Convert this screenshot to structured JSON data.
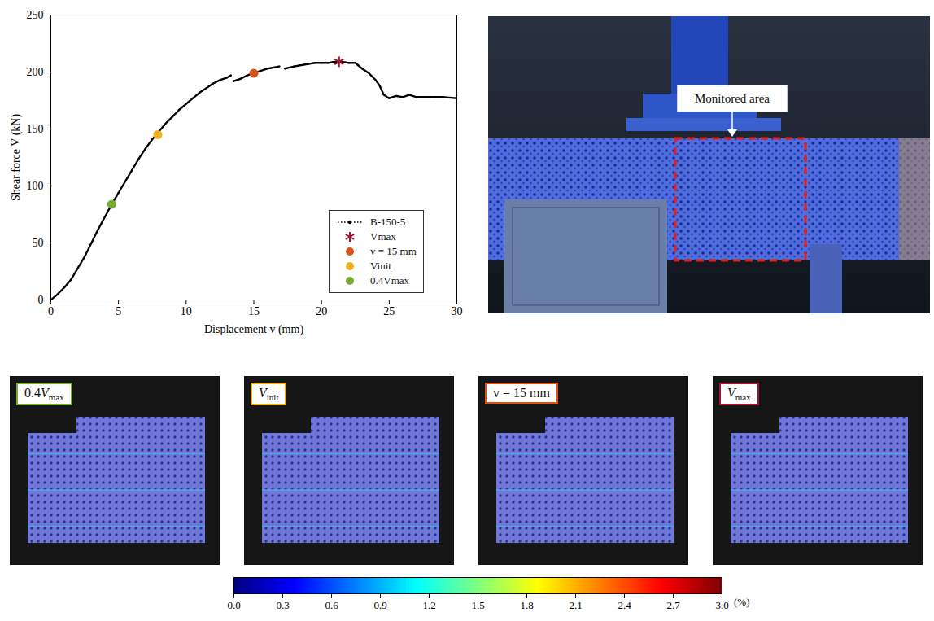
{
  "chart_data": {
    "type": "line",
    "x_label": "Displacement v (mm)",
    "y_label": "Shear force V (kN)",
    "xlim": [
      0,
      30
    ],
    "ylim": [
      0,
      250
    ],
    "xticks": [
      0,
      5,
      10,
      15,
      20,
      25,
      30
    ],
    "yticks": [
      0,
      50,
      100,
      150,
      200,
      250
    ],
    "grid": false,
    "legend": "lower right",
    "series": [
      {
        "name": "B-150-5",
        "type": "line",
        "color": "#000000",
        "marker": "dot",
        "line_style": "dotted",
        "x": [
          0,
          0.5,
          1,
          1.5,
          2,
          2.5,
          3,
          3.5,
          4,
          4.5,
          5,
          5.5,
          6,
          6.5,
          7,
          7.5,
          8,
          8.5,
          9,
          9.5,
          10,
          10.5,
          11,
          11.5,
          12,
          12.5,
          13,
          13.3,
          13.4,
          13.5,
          14,
          14.5,
          15,
          15.5,
          16,
          16.5,
          16.9,
          17.1,
          17.3,
          18,
          18.5,
          19,
          19.5,
          20,
          20.5,
          21,
          21.5,
          22,
          22.5,
          23,
          23.5,
          24,
          24.3,
          24.6,
          25,
          25.5,
          26,
          26.5,
          27,
          28,
          29,
          30
        ],
        "values": [
          0,
          5,
          11,
          18,
          28,
          38,
          50,
          62,
          73,
          84,
          94,
          104,
          114,
          124,
          133,
          141,
          148,
          155,
          161,
          167,
          172,
          177,
          182,
          186,
          190,
          193,
          195,
          197,
          null,
          192,
          194,
          197,
          199,
          201,
          203,
          204,
          205,
          null,
          203,
          205,
          206,
          207,
          208,
          208,
          208,
          209,
          209,
          208,
          208,
          203,
          199,
          193,
          188,
          180,
          177,
          179,
          178,
          180,
          178,
          178,
          178,
          177
        ]
      },
      {
        "name": "Vmax",
        "type": "scatter",
        "color": "#a2142f",
        "marker": "asterisk",
        "x": [
          21.3
        ],
        "values": [
          209
        ]
      },
      {
        "name": "v = 15 mm",
        "type": "scatter",
        "color": "#d95319",
        "marker": "circle",
        "x": [
          15
        ],
        "values": [
          199
        ]
      },
      {
        "name": "Vinit",
        "type": "scatter",
        "color": "#edb120",
        "marker": "circle",
        "x": [
          7.9
        ],
        "values": [
          145
        ]
      },
      {
        "name": "0.4Vmax",
        "type": "scatter",
        "color": "#77ac30",
        "marker": "circle",
        "x": [
          4.5
        ],
        "values": [
          84
        ]
      }
    ]
  },
  "photo": {
    "annotation": "Monitored area"
  },
  "strain_maps": {
    "panels": [
      {
        "label": "0.4Vmax",
        "color": "#77ac30"
      },
      {
        "label": "Vinit",
        "color": "#edb120"
      },
      {
        "label": "v = 15 mm",
        "color": "#d95319"
      },
      {
        "label": "Vmax",
        "color": "#a2142f"
      }
    ],
    "colorbar": {
      "range": [
        0,
        3
      ],
      "ticks": [
        {
          "value": 0,
          "label": "0.0"
        },
        {
          "value": 0.3,
          "label": "0.3"
        },
        {
          "value": 0.6,
          "label": "0.6"
        },
        {
          "value": 0.9,
          "label": "0.9"
        },
        {
          "value": 1.2,
          "label": "1.2"
        },
        {
          "value": 1.5,
          "label": "1.5"
        },
        {
          "value": 1.8,
          "label": "1.8"
        },
        {
          "value": 2.1,
          "label": "2.1"
        },
        {
          "value": 2.4,
          "label": "2.4"
        },
        {
          "value": 2.7,
          "label": "2.7"
        },
        {
          "value": 3,
          "label": "3.0"
        }
      ],
      "unit": "(%)"
    }
  }
}
